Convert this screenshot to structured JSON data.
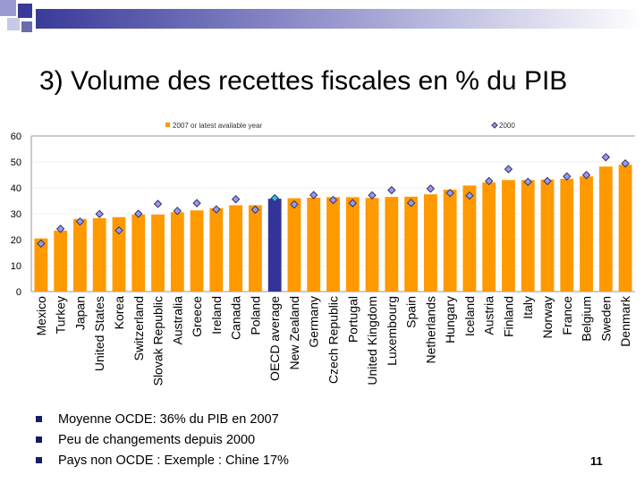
{
  "slide": {
    "title": "3) Volume des recettes fiscales en % du PIB",
    "bullets": [
      "Moyenne OCDE: 36% du PIB en 2007",
      "Peu de changements depuis 2000",
      "Pays non OCDE : Exemple : Chine 17%"
    ],
    "page_number": "11"
  },
  "chart_data": {
    "type": "bar",
    "ylim": [
      0,
      60
    ],
    "yticks": [
      "0",
      "10",
      "20",
      "30",
      "40",
      "50",
      "60"
    ],
    "grid": true,
    "legend_placement": "top",
    "colors": {
      "bar": "#ff9900",
      "highlight": "#333399",
      "marker": "#9999ee"
    },
    "highlight_category": "OECD average",
    "categories": [
      "Mexico",
      "Turkey",
      "Japan",
      "United States",
      "Korea",
      "Switzerland",
      "Slovak Republic",
      "Australia",
      "Greece",
      "Ireland",
      "Canada",
      "Poland",
      "OECD average",
      "New Zealand",
      "Germany",
      "Czech Republic",
      "Portugal",
      "United Kingdom",
      "Luxembourg",
      "Spain",
      "Netherlands",
      "Hungary",
      "Iceland",
      "Austria",
      "Finland",
      "Italy",
      "Norway",
      "France",
      "Belgium",
      "Sweden",
      "Denmark"
    ],
    "series": [
      {
        "name": "2007 or latest available year",
        "kind": "bar",
        "values": [
          20.5,
          23.5,
          28.0,
          28.3,
          28.7,
          29.7,
          29.7,
          30.6,
          31.3,
          32.2,
          33.3,
          33.3,
          35.8,
          36.0,
          36.2,
          36.4,
          36.4,
          36.1,
          36.5,
          36.6,
          37.5,
          39.3,
          40.9,
          42.1,
          43.0,
          43.0,
          43.2,
          43.5,
          44.4,
          48.2,
          48.9
        ]
      },
      {
        "name": "2000",
        "kind": "marker",
        "values": [
          18.5,
          24.2,
          27.0,
          29.9,
          23.6,
          30.0,
          33.8,
          31.1,
          34.1,
          31.7,
          35.6,
          31.6,
          36.0,
          33.6,
          37.2,
          35.3,
          34.1,
          37.1,
          39.1,
          34.2,
          39.7,
          38.0,
          37.0,
          42.6,
          47.2,
          42.3,
          42.6,
          44.4,
          44.9,
          51.8,
          49.4
        ]
      }
    ]
  }
}
